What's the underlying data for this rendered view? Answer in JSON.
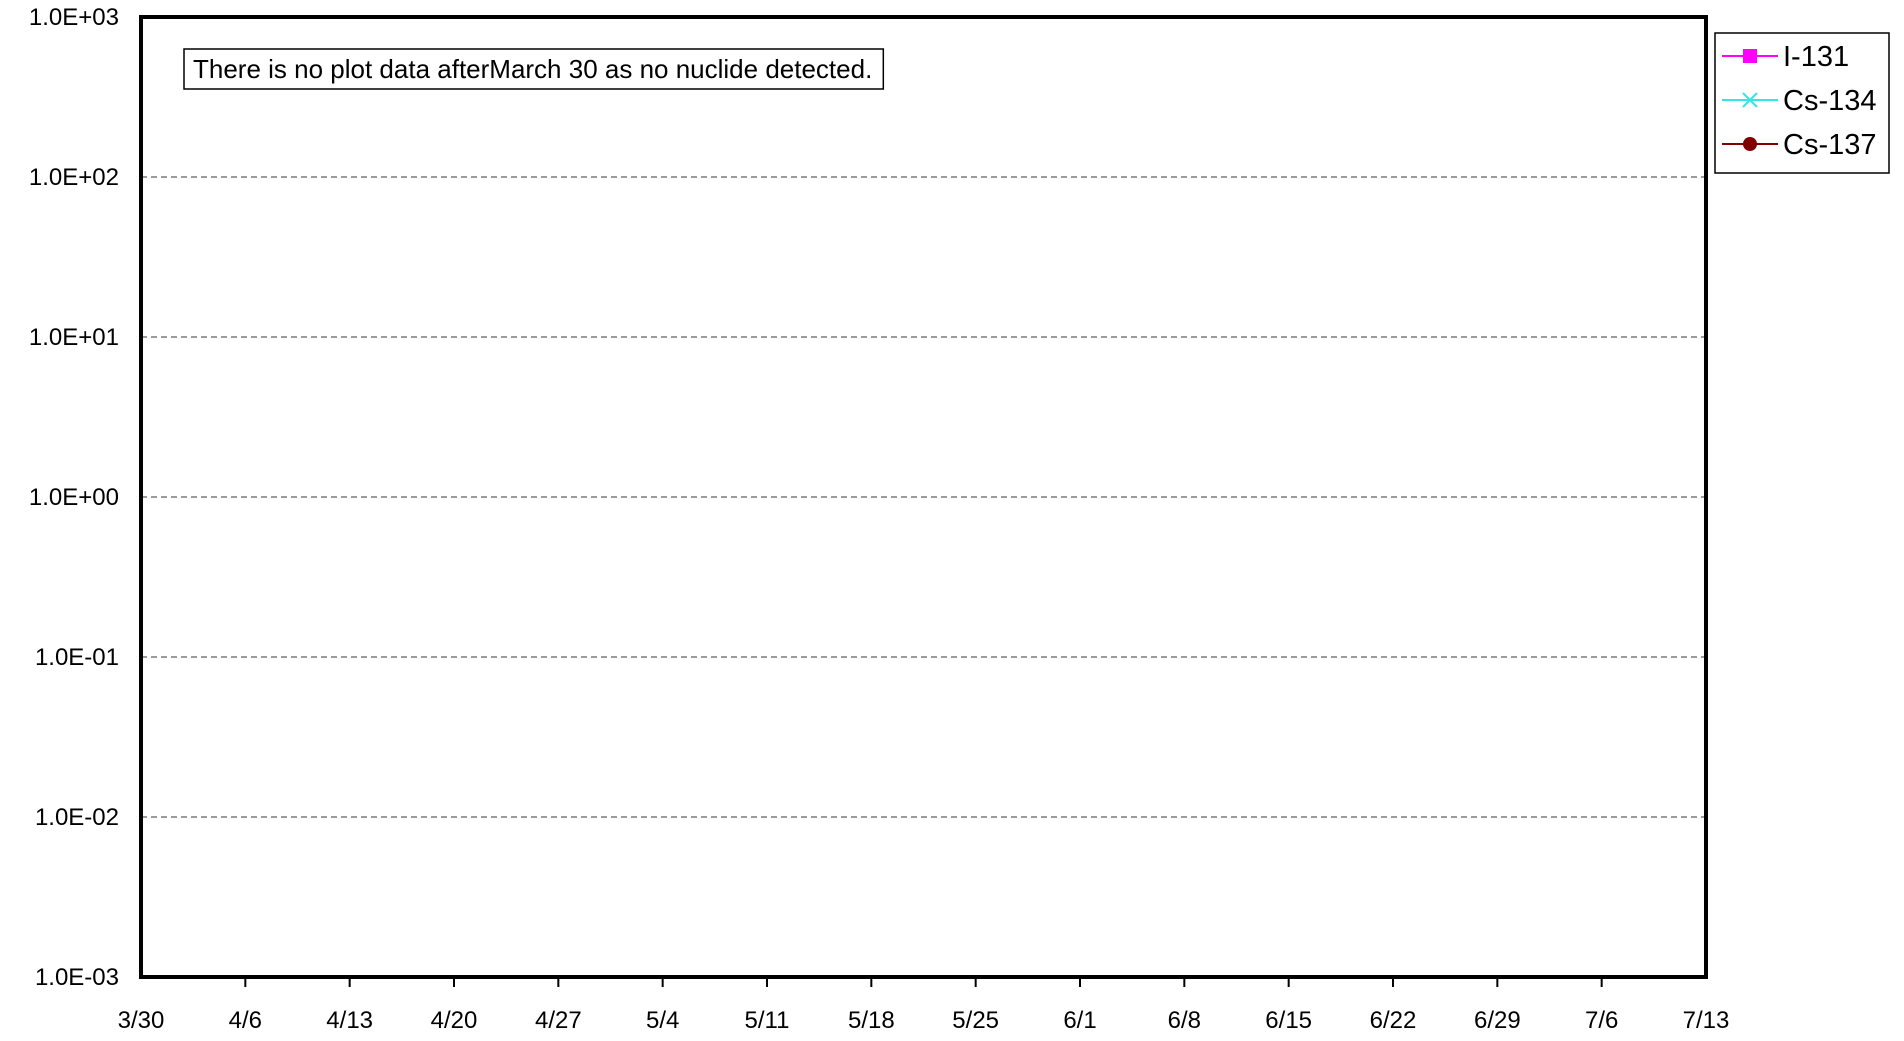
{
  "chart_data": {
    "type": "line",
    "title": "",
    "xlabel": "",
    "ylabel": "",
    "y_scale": "log",
    "ylim": [
      "1.0E-03",
      "1.0E+03"
    ],
    "y_ticks": [
      {
        "value": 1000,
        "label": "1.0E+03"
      },
      {
        "value": 100,
        "label": "1.0E+02"
      },
      {
        "value": 10,
        "label": "1.0E+01"
      },
      {
        "value": 1,
        "label": "1.0E+00"
      },
      {
        "value": 0.1,
        "label": "1.0E-01"
      },
      {
        "value": 0.01,
        "label": "1.0E-02"
      },
      {
        "value": 0.001,
        "label": "1.0E-03"
      }
    ],
    "x_ticks": [
      "3/30",
      "4/6",
      "4/13",
      "4/20",
      "4/27",
      "5/4",
      "5/11",
      "5/18",
      "5/25",
      "6/1",
      "6/8",
      "6/15",
      "6/22",
      "6/29",
      "7/6",
      "7/13"
    ],
    "xlim": [
      "3/30",
      "7/13"
    ],
    "grid": "horizontal dashed",
    "legend_position": "right",
    "annotation": "There is no plot data afterMarch 30 as no nuclide detected.",
    "series": [
      {
        "name": "I-131",
        "color": "#ff00ff",
        "marker": "square",
        "values": []
      },
      {
        "name": "Cs-134",
        "color": "#33e6e6",
        "marker": "x",
        "values": []
      },
      {
        "name": "Cs-137",
        "color": "#800000",
        "marker": "circle",
        "values": []
      }
    ]
  }
}
